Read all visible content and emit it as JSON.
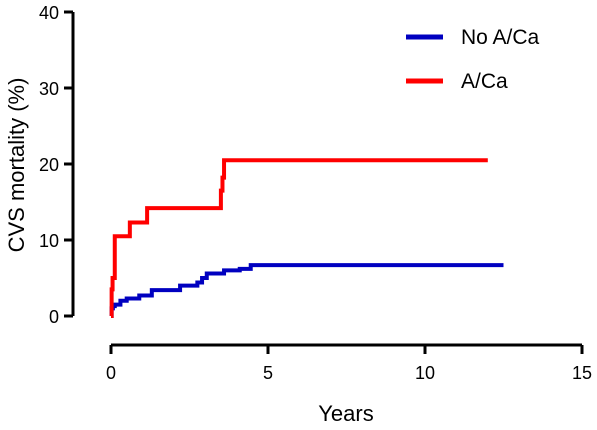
{
  "chart_data": {
    "type": "line",
    "step": true,
    "xlabel": "Years",
    "ylabel": "CVS mortality (%)",
    "xlim": [
      0,
      15
    ],
    "ylim": [
      0,
      40
    ],
    "x_ticks": [
      "0",
      "5",
      "10",
      "15"
    ],
    "y_ticks": [
      "0",
      "10",
      "20",
      "30",
      "40"
    ],
    "grid": false,
    "legend_position": "top-right",
    "series": [
      {
        "name": "No A/Ca",
        "color": "#0000c0",
        "points": [
          [
            0,
            0
          ],
          [
            0.02,
            1
          ],
          [
            0.06,
            1.3
          ],
          [
            0.12,
            1.5
          ],
          [
            0.3,
            2.0
          ],
          [
            0.5,
            2.3
          ],
          [
            0.9,
            2.7
          ],
          [
            1.3,
            3.4
          ],
          [
            2.2,
            4.0
          ],
          [
            2.75,
            4.4
          ],
          [
            2.9,
            5.0
          ],
          [
            3.05,
            5.6
          ],
          [
            3.6,
            6.0
          ],
          [
            4.1,
            6.2
          ],
          [
            4.45,
            6.7
          ],
          [
            12.5,
            6.7
          ]
        ]
      },
      {
        "name": "A/Ca",
        "color": "#ff0000",
        "points": [
          [
            0,
            0
          ],
          [
            0.02,
            3.5
          ],
          [
            0.05,
            5.0
          ],
          [
            0.12,
            10.5
          ],
          [
            0.6,
            12.3
          ],
          [
            1.15,
            14.2
          ],
          [
            3.5,
            16.5
          ],
          [
            3.55,
            18.2
          ],
          [
            3.6,
            20.5
          ],
          [
            12.0,
            20.5
          ]
        ]
      }
    ]
  }
}
